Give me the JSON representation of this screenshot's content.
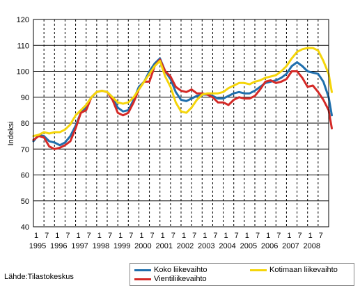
{
  "chart_data": {
    "type": "line",
    "ylabel": "Indeksi",
    "ylim": [
      40,
      120
    ],
    "yticks": [
      40,
      50,
      60,
      70,
      80,
      90,
      100,
      110,
      120
    ],
    "xlim": [
      1995.0,
      2009.0
    ],
    "year_labels": [
      "1995",
      "1996",
      "1997",
      "1998",
      "1999",
      "2000",
      "2001",
      "2002",
      "2003",
      "2004",
      "2005",
      "2006",
      "2007",
      "2008"
    ],
    "month_labels": [
      "1",
      "7"
    ],
    "grid": "dashed vertical lines at month 1 and 7, solid horizontal lines",
    "legend_position": "bottom-right",
    "series": [
      {
        "name": "Koko liikevaihto",
        "color": "#1f6fad",
        "points": [
          [
            1995.0,
            73
          ],
          [
            1995.25,
            75.5
          ],
          [
            1995.5,
            75
          ],
          [
            1995.75,
            73
          ],
          [
            1996.0,
            72.5
          ],
          [
            1996.25,
            71.5
          ],
          [
            1996.5,
            72.5
          ],
          [
            1996.75,
            75
          ],
          [
            1997.0,
            79
          ],
          [
            1997.25,
            84
          ],
          [
            1997.5,
            86
          ],
          [
            1997.75,
            90
          ],
          [
            1998.0,
            92
          ],
          [
            1998.25,
            92.5
          ],
          [
            1998.5,
            92
          ],
          [
            1998.75,
            90
          ],
          [
            1999.0,
            86
          ],
          [
            1999.25,
            84.5
          ],
          [
            1999.5,
            85
          ],
          [
            1999.75,
            89
          ],
          [
            2000.0,
            94
          ],
          [
            2000.25,
            96
          ],
          [
            2000.5,
            100
          ],
          [
            2000.75,
            103
          ],
          [
            2001.0,
            105
          ],
          [
            2001.25,
            100
          ],
          [
            2001.5,
            97
          ],
          [
            2001.75,
            92
          ],
          [
            2002.0,
            89
          ],
          [
            2002.25,
            88.5
          ],
          [
            2002.5,
            89.5
          ],
          [
            2002.75,
            90.5
          ],
          [
            2003.0,
            91
          ],
          [
            2003.25,
            91
          ],
          [
            2003.5,
            90.5
          ],
          [
            2003.75,
            89.5
          ],
          [
            2004.0,
            89.5
          ],
          [
            2004.25,
            90.5
          ],
          [
            2004.5,
            91.5
          ],
          [
            2004.75,
            92
          ],
          [
            2005.0,
            91.5
          ],
          [
            2005.25,
            91.5
          ],
          [
            2005.5,
            92.5
          ],
          [
            2005.75,
            94
          ],
          [
            2006.0,
            95.5
          ],
          [
            2006.25,
            96
          ],
          [
            2006.5,
            96.5
          ],
          [
            2006.75,
            97.5
          ],
          [
            2007.0,
            99
          ],
          [
            2007.25,
            102
          ],
          [
            2007.5,
            103.5
          ],
          [
            2007.75,
            102
          ],
          [
            2008.0,
            100
          ],
          [
            2008.25,
            99.5
          ],
          [
            2008.5,
            99
          ],
          [
            2008.75,
            96
          ],
          [
            2009.0,
            90
          ],
          [
            2009.15,
            83
          ]
        ]
      },
      {
        "name": "Vientiliikevaihto",
        "color": "#d42a27",
        "points": [
          [
            1995.0,
            73.5
          ],
          [
            1995.25,
            75
          ],
          [
            1995.5,
            74.5
          ],
          [
            1995.75,
            71
          ],
          [
            1996.0,
            70
          ],
          [
            1996.25,
            70.5
          ],
          [
            1996.5,
            71.5
          ],
          [
            1996.75,
            73
          ],
          [
            1997.0,
            78
          ],
          [
            1997.25,
            84
          ],
          [
            1997.5,
            85
          ],
          [
            1997.75,
            90
          ],
          [
            1998.0,
            92
          ],
          [
            1998.25,
            92.5
          ],
          [
            1998.5,
            92
          ],
          [
            1998.75,
            89
          ],
          [
            1999.0,
            84
          ],
          [
            1999.25,
            83
          ],
          [
            1999.5,
            84
          ],
          [
            1999.75,
            88
          ],
          [
            2000.0,
            93
          ],
          [
            2000.25,
            96
          ],
          [
            2000.5,
            96
          ],
          [
            2000.75,
            102
          ],
          [
            2001.0,
            104.5
          ],
          [
            2001.25,
            100
          ],
          [
            2001.5,
            98
          ],
          [
            2001.75,
            94
          ],
          [
            2002.0,
            92.5
          ],
          [
            2002.25,
            92
          ],
          [
            2002.5,
            93
          ],
          [
            2002.75,
            91.5
          ],
          [
            2003.0,
            91.5
          ],
          [
            2003.25,
            91
          ],
          [
            2003.5,
            90
          ],
          [
            2003.75,
            88
          ],
          [
            2004.0,
            88
          ],
          [
            2004.25,
            87
          ],
          [
            2004.5,
            89
          ],
          [
            2004.75,
            90
          ],
          [
            2005.0,
            89.5
          ],
          [
            2005.25,
            89.5
          ],
          [
            2005.5,
            90.5
          ],
          [
            2005.75,
            93
          ],
          [
            2006.0,
            96
          ],
          [
            2006.25,
            96.5
          ],
          [
            2006.5,
            95.5
          ],
          [
            2006.75,
            96
          ],
          [
            2007.0,
            97
          ],
          [
            2007.25,
            100
          ],
          [
            2007.5,
            100
          ],
          [
            2007.75,
            97.5
          ],
          [
            2008.0,
            94
          ],
          [
            2008.25,
            94.5
          ],
          [
            2008.5,
            92
          ],
          [
            2008.75,
            89
          ],
          [
            2009.0,
            85
          ],
          [
            2009.15,
            78
          ]
        ]
      },
      {
        "name": "Kotimaan liikevaihto",
        "color": "#f5d50a",
        "points": [
          [
            1995.0,
            75
          ],
          [
            1995.25,
            75.5
          ],
          [
            1995.5,
            76.5
          ],
          [
            1995.75,
            76
          ],
          [
            1996.0,
            76.5
          ],
          [
            1996.25,
            76.5
          ],
          [
            1996.5,
            77.5
          ],
          [
            1996.75,
            79.5
          ],
          [
            1997.0,
            83
          ],
          [
            1997.25,
            85
          ],
          [
            1997.5,
            87
          ],
          [
            1997.75,
            90
          ],
          [
            1998.0,
            92
          ],
          [
            1998.25,
            92.5
          ],
          [
            1998.5,
            92
          ],
          [
            1998.75,
            90
          ],
          [
            1999.0,
            88
          ],
          [
            1999.25,
            87.5
          ],
          [
            1999.5,
            88
          ],
          [
            1999.75,
            90
          ],
          [
            2000.0,
            93
          ],
          [
            2000.25,
            96
          ],
          [
            2000.5,
            99
          ],
          [
            2000.75,
            102
          ],
          [
            2001.0,
            104
          ],
          [
            2001.25,
            98
          ],
          [
            2001.5,
            94
          ],
          [
            2001.75,
            88
          ],
          [
            2002.0,
            84.5
          ],
          [
            2002.25,
            84
          ],
          [
            2002.5,
            86
          ],
          [
            2002.75,
            89
          ],
          [
            2003.0,
            91
          ],
          [
            2003.25,
            91.5
          ],
          [
            2003.5,
            91.5
          ],
          [
            2003.75,
            91.5
          ],
          [
            2004.0,
            92
          ],
          [
            2004.25,
            93.5
          ],
          [
            2004.5,
            94.5
          ],
          [
            2004.75,
            95.5
          ],
          [
            2005.0,
            95.5
          ],
          [
            2005.25,
            95
          ],
          [
            2005.5,
            96
          ],
          [
            2005.75,
            96.5
          ],
          [
            2006.0,
            97.5
          ],
          [
            2006.25,
            98
          ],
          [
            2006.5,
            98.5
          ],
          [
            2006.75,
            100
          ],
          [
            2007.0,
            102
          ],
          [
            2007.25,
            105
          ],
          [
            2007.5,
            107.5
          ],
          [
            2007.75,
            108.5
          ],
          [
            2008.0,
            109
          ],
          [
            2008.25,
            109
          ],
          [
            2008.5,
            108
          ],
          [
            2008.75,
            104
          ],
          [
            2009.0,
            99
          ],
          [
            2009.15,
            92
          ]
        ]
      }
    ]
  },
  "source_label": "Lähde:Tilastokeskus",
  "legend": {
    "koko": "Koko liikevaihto",
    "vienti": "Vientiliikevaihto",
    "kotimaa": "Kotimaan liikevaihto"
  }
}
